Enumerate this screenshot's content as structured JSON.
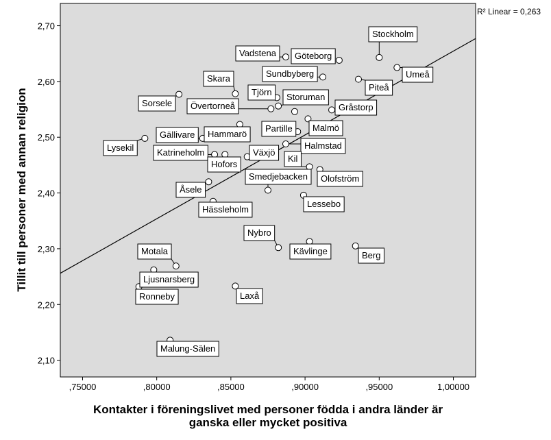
{
  "chart_data": {
    "type": "scatter",
    "title": "",
    "xlabel": "Kontakter i föreningslivet med personer födda i andra länder är ganska eller mycket positiva",
    "xlabel_lines": [
      "Kontakter i föreningslivet med personer födda i andra länder är",
      "ganska eller mycket positiva"
    ],
    "ylabel": "Tillit till personer med annan religion",
    "xlim": [
      0.735,
      1.015
    ],
    "ylim": [
      2.07,
      2.74
    ],
    "x_ticks": [
      0.75,
      0.8,
      0.85,
      0.9,
      0.95,
      1.0
    ],
    "x_tick_labels": [
      ",75000",
      ",80000",
      ",85000",
      ",90000",
      ",95000",
      "1,00000"
    ],
    "y_ticks": [
      2.1,
      2.2,
      2.3,
      2.4,
      2.5,
      2.6,
      2.7
    ],
    "y_tick_labels": [
      "2,10",
      "2,20",
      "2,30",
      "2,40",
      "2,50",
      "2,60",
      "2,70"
    ],
    "grid": false,
    "plot_background": "#dcdcdc",
    "fit_line": {
      "type": "linear",
      "label": "R² Linear = 0,263",
      "x": [
        0.735,
        1.015
      ],
      "y": [
        2.256,
        2.677
      ]
    },
    "points": [
      {
        "name": "Stockholm",
        "x": 0.95,
        "y": 2.643
      },
      {
        "name": "Umeå",
        "x": 0.962,
        "y": 2.625
      },
      {
        "name": "Piteå",
        "x": 0.936,
        "y": 2.604
      },
      {
        "name": "Vadstena",
        "x": 0.887,
        "y": 2.644
      },
      {
        "name": "Göteborg",
        "x": 0.923,
        "y": 2.638
      },
      {
        "name": "Sundbyberg",
        "x": 0.912,
        "y": 2.608
      },
      {
        "name": "Skara",
        "x": 0.853,
        "y": 2.578
      },
      {
        "name": "Sorsele",
        "x": 0.815,
        "y": 2.577
      },
      {
        "name": "Tjörn",
        "x": 0.881,
        "y": 2.571
      },
      {
        "name": "Storuman",
        "x": 0.882,
        "y": 2.556
      },
      {
        "name": "Övertorneå",
        "x": 0.877,
        "y": 2.551
      },
      {
        "name": "Gråstorp",
        "x": 0.918,
        "y": 2.549
      },
      {
        "name": "Storuman-2",
        "x": 0.893,
        "y": 2.546
      },
      {
        "name": "Malmö",
        "x": 0.902,
        "y": 2.533
      },
      {
        "name": "Hammarö",
        "x": 0.856,
        "y": 2.523
      },
      {
        "name": "Partille",
        "x": 0.895,
        "y": 2.51
      },
      {
        "name": "Lysekil",
        "x": 0.792,
        "y": 2.498
      },
      {
        "name": "Gällivare",
        "x": 0.831,
        "y": 2.498
      },
      {
        "name": "Halmstad",
        "x": 0.887,
        "y": 2.488
      },
      {
        "name": "Katrineholm",
        "x": 0.839,
        "y": 2.469
      },
      {
        "name": "Hofors",
        "x": 0.846,
        "y": 2.469
      },
      {
        "name": "Växjö",
        "x": 0.861,
        "y": 2.465
      },
      {
        "name": "Kil",
        "x": 0.903,
        "y": 2.447
      },
      {
        "name": "Olofström",
        "x": 0.91,
        "y": 2.442
      },
      {
        "name": "Åsele",
        "x": 0.835,
        "y": 2.42
      },
      {
        "name": "Smedjebacken",
        "x": 0.875,
        "y": 2.405
      },
      {
        "name": "Lessebo",
        "x": 0.899,
        "y": 2.396
      },
      {
        "name": "Hässleholm",
        "x": 0.838,
        "y": 2.385
      },
      {
        "name": "Nybro",
        "x": 0.882,
        "y": 2.302
      },
      {
        "name": "Kävlinge",
        "x": 0.903,
        "y": 2.313
      },
      {
        "name": "Berg",
        "x": 0.934,
        "y": 2.305
      },
      {
        "name": "Motala",
        "x": 0.813,
        "y": 2.269
      },
      {
        "name": "Ljusnarsberg",
        "x": 0.798,
        "y": 2.262
      },
      {
        "name": "Ronneby",
        "x": 0.788,
        "y": 2.232
      },
      {
        "name": "Laxå",
        "x": 0.853,
        "y": 2.233
      },
      {
        "name": "Malung-Sälen",
        "x": 0.809,
        "y": 2.136
      }
    ]
  },
  "labels": [
    {
      "text": "Stockholm"
    },
    {
      "text": "Umeå"
    },
    {
      "text": "Piteå"
    },
    {
      "text": "Vadstena"
    },
    {
      "text": "Göteborg"
    },
    {
      "text": "Sundbyberg"
    },
    {
      "text": "Skara"
    },
    {
      "text": "Sorsele"
    },
    {
      "text": "Tjörn"
    },
    {
      "text": "Storuman"
    },
    {
      "text": "Övertorneå"
    },
    {
      "text": "Gråstorp"
    },
    {
      "text": "Malmö"
    },
    {
      "text": "Hammarö"
    },
    {
      "text": "Partille"
    },
    {
      "text": "Lysekil"
    },
    {
      "text": "Gällivare"
    },
    {
      "text": "Halmstad"
    },
    {
      "text": "Katrineholm"
    },
    {
      "text": "Hofors"
    },
    {
      "text": "Växjö"
    },
    {
      "text": "Kil"
    },
    {
      "text": "Olofström"
    },
    {
      "text": "Åsele"
    },
    {
      "text": "Smedjebacken"
    },
    {
      "text": "Lessebo"
    },
    {
      "text": "Hässleholm"
    },
    {
      "text": "Nybro"
    },
    {
      "text": "Kävlinge"
    },
    {
      "text": "Berg"
    },
    {
      "text": "Motala"
    },
    {
      "text": "Ljusnarsberg"
    },
    {
      "text": "Ronneby"
    },
    {
      "text": "Laxå"
    },
    {
      "text": "Malung-Sälen"
    }
  ]
}
